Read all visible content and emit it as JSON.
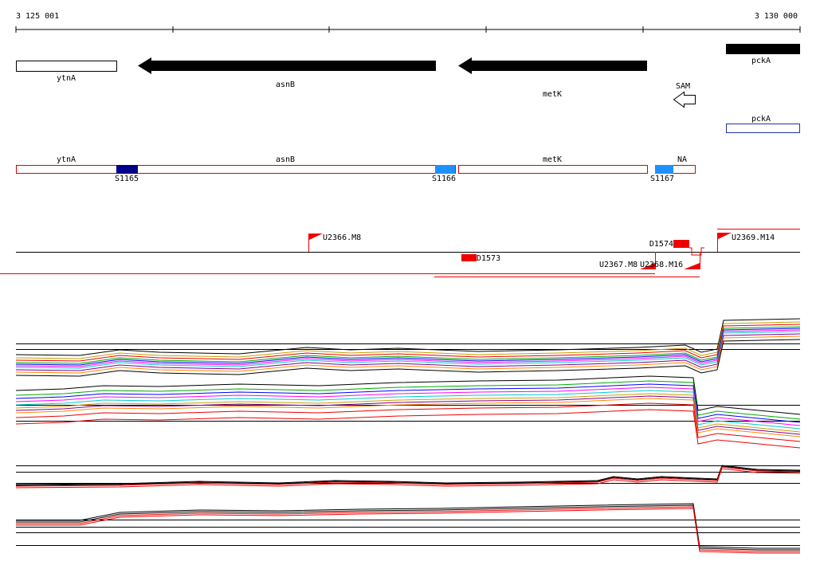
{
  "ruler": {
    "start": "3 125 001",
    "end": "3 130 000"
  },
  "genes": [
    "ytnA",
    "asnB",
    "metK",
    "SAM",
    "pckA",
    "pckA"
  ],
  "segments": [
    "ytnA",
    "asnB",
    "metK",
    "NA"
  ],
  "sites": [
    "S1165",
    "S1166",
    "S1167"
  ],
  "features": [
    "U2366.M8",
    "D1573",
    "D1574",
    "U2367.M8",
    "U2368.M16",
    "U2369.M14"
  ]
}
